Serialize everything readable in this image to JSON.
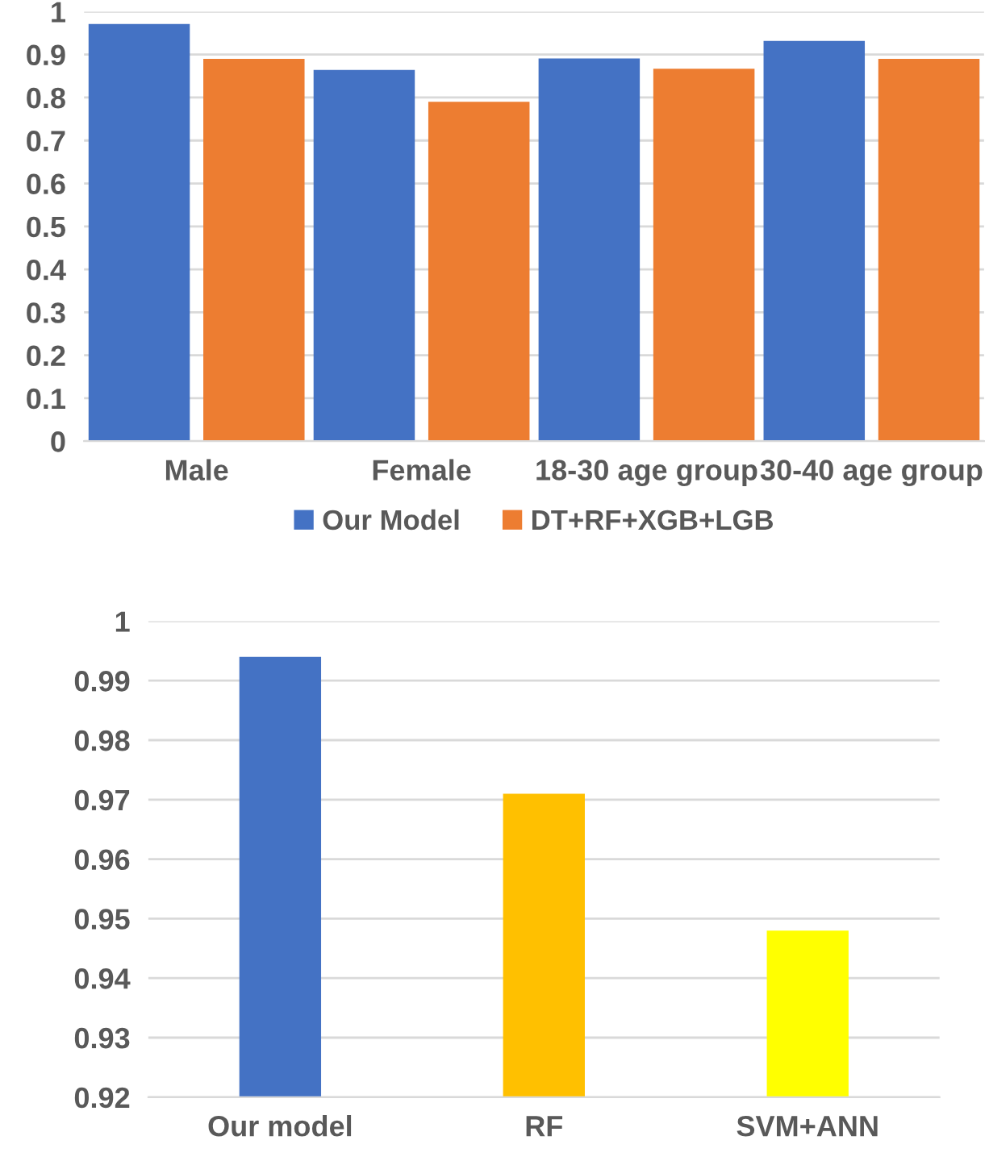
{
  "chart_data": [
    {
      "type": "bar",
      "categories": [
        "Male",
        "Female",
        "18-30 age group",
        "30-40 age group"
      ],
      "series": [
        {
          "name": "Our Model",
          "color": "#4472c4",
          "values": [
            0.971,
            0.864,
            0.891,
            0.932
          ]
        },
        {
          "name": "DT+RF+XGB+LGB",
          "color": "#ed7d31",
          "values": [
            0.89,
            0.79,
            0.867,
            0.89
          ]
        }
      ],
      "ylim": [
        0,
        1
      ],
      "yticks": [
        0,
        0.1,
        0.2,
        0.3,
        0.4,
        0.5,
        0.6,
        0.7,
        0.8,
        0.9,
        1
      ],
      "grid": "y",
      "legend": "bottom"
    },
    {
      "type": "bar",
      "categories": [
        "Our model",
        "RF",
        "SVM+ANN"
      ],
      "values": [
        0.994,
        0.971,
        0.948
      ],
      "colors": [
        "#4472c4",
        "#ffc000",
        "#ffff00"
      ],
      "ylim": [
        0.92,
        1
      ],
      "yticks": [
        0.92,
        0.93,
        0.94,
        0.95,
        0.96,
        0.97,
        0.98,
        0.99,
        1
      ],
      "grid": "y"
    }
  ]
}
